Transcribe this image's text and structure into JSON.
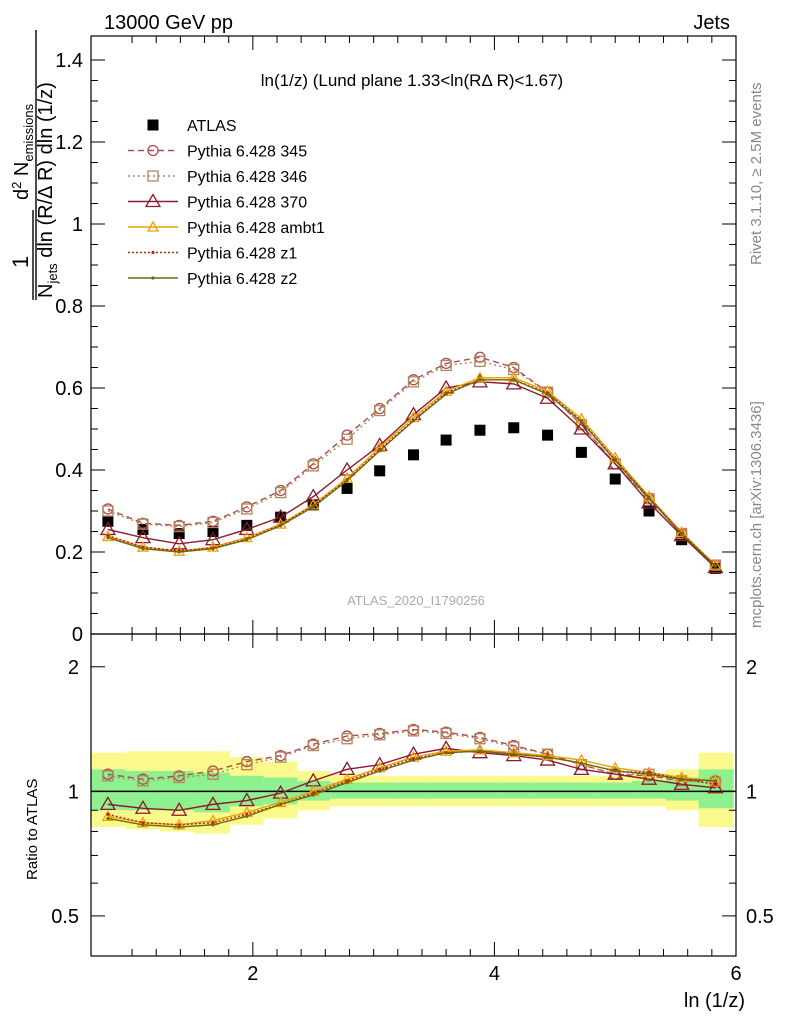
{
  "header": {
    "left": "13000 GeV pp",
    "right": "Jets"
  },
  "side_labels": {
    "rivet": "Rivet 3.1.10, ≥ 2.5M events",
    "mcplots": "mcplots.cern.ch [arXiv:1306.3436]"
  },
  "watermark": "ATLAS_2020_I1790256",
  "plot_title": "ln(1/z) (Lund plane 1.33<ln(RΔ R)<1.67)",
  "colors": {
    "atlas": "#000000",
    "p345": "#b14a4a",
    "p346": "#b0855a",
    "p370": "#8b1a2b",
    "ambt1": "#f0a000",
    "z1": "#c81a1a",
    "z2": "#6b6b10",
    "band_inner": "#8ef08e",
    "band_outer": "#fafa8c"
  },
  "chart_data": [
    {
      "type": "line",
      "title": "ln(1/z) (Lund plane 1.33<ln(RΔ R)<1.67)",
      "xlabel": "ln (1/z)",
      "ylabel": "1/N_jets d²N_emissions / dln(R/Δ R) dln(1/z)",
      "xlim": [
        0.66,
        6.0
      ],
      "ylim": [
        0,
        1.4
      ],
      "yticks": [
        0,
        0.2,
        0.4,
        0.6,
        0.8,
        1,
        1.2,
        1.4
      ],
      "ytick_labels": [
        "0",
        "0.2",
        "0.4",
        "0.6",
        "0.8",
        "1",
        "1.2",
        "1.4"
      ],
      "x": [
        0.8,
        1.09,
        1.39,
        1.67,
        1.95,
        2.23,
        2.5,
        2.78,
        3.05,
        3.33,
        3.6,
        3.88,
        4.16,
        4.44,
        4.72,
        5.0,
        5.28,
        5.55,
        5.83
      ],
      "series": [
        {
          "name": "ATLAS",
          "key": "atlas",
          "marker": "square",
          "values": [
            0.275,
            0.255,
            0.245,
            0.25,
            0.265,
            0.285,
            0.315,
            0.355,
            0.398,
            0.437,
            0.473,
            0.497,
            0.503,
            0.485,
            0.443,
            0.378,
            0.3,
            0.23,
            0.16
          ]
        },
        {
          "name": "Pythia 6.428 345",
          "key": "p345",
          "marker": "circle",
          "dash": "6,4",
          "values": [
            0.305,
            0.27,
            0.265,
            0.275,
            0.31,
            0.35,
            0.415,
            0.485,
            0.55,
            0.62,
            0.66,
            0.675,
            0.65,
            0.59,
            0.51,
            0.415,
            0.33,
            0.245,
            0.168
          ]
        },
        {
          "name": "Pythia 6.428 346",
          "key": "p346",
          "marker": "square-open",
          "dash": "2,3",
          "values": [
            0.3,
            0.268,
            0.262,
            0.272,
            0.305,
            0.345,
            0.41,
            0.475,
            0.545,
            0.615,
            0.655,
            0.665,
            0.645,
            0.59,
            0.51,
            0.415,
            0.33,
            0.245,
            0.168
          ]
        },
        {
          "name": "Pythia 6.428 370",
          "key": "p370",
          "marker": "triangle",
          "dash": "",
          "values": [
            0.255,
            0.235,
            0.22,
            0.23,
            0.255,
            0.285,
            0.335,
            0.4,
            0.46,
            0.535,
            0.6,
            0.615,
            0.61,
            0.575,
            0.5,
            0.415,
            0.32,
            0.24,
            0.162
          ]
        },
        {
          "name": "Pythia 6.428 ambt1",
          "key": "ambt1",
          "marker": "triangle-small",
          "dash": "",
          "values": [
            0.238,
            0.212,
            0.202,
            0.212,
            0.235,
            0.268,
            0.315,
            0.38,
            0.455,
            0.528,
            0.592,
            0.625,
            0.625,
            0.592,
            0.525,
            0.43,
            0.335,
            0.248,
            0.168
          ]
        },
        {
          "name": "Pythia 6.428 z1",
          "key": "z1",
          "marker": "dot",
          "dash": "2,2",
          "values": [
            0.24,
            0.212,
            0.203,
            0.21,
            0.232,
            0.266,
            0.313,
            0.376,
            0.45,
            0.522,
            0.588,
            0.62,
            0.62,
            0.588,
            0.52,
            0.425,
            0.333,
            0.246,
            0.167
          ]
        },
        {
          "name": "Pythia 6.428 z2",
          "key": "z2",
          "marker": "dot",
          "dash": "",
          "values": [
            0.235,
            0.208,
            0.2,
            0.208,
            0.23,
            0.264,
            0.31,
            0.374,
            0.447,
            0.52,
            0.585,
            0.62,
            0.62,
            0.585,
            0.518,
            0.423,
            0.331,
            0.244,
            0.166
          ]
        }
      ]
    },
    {
      "type": "line",
      "ylabel": "Ratio to ATLAS",
      "xlabel": "ln (1/z)",
      "xlim": [
        0.66,
        6.0
      ],
      "ylim": [
        0.4,
        2.4
      ],
      "scale": "log",
      "xticks": [
        2,
        4,
        6
      ],
      "xtick_labels": [
        "2",
        "4",
        "6"
      ],
      "yticks": [
        0.5,
        1,
        2
      ],
      "ytick_labels": [
        "0.5",
        "1",
        "2"
      ],
      "bin_edges": [
        0.66,
        0.95,
        1.23,
        1.51,
        1.81,
        2.09,
        2.37,
        2.64,
        2.92,
        3.19,
        3.47,
        3.74,
        4.02,
        4.3,
        4.58,
        4.86,
        5.14,
        5.42,
        5.69,
        5.98
      ],
      "band_inner": [
        [
          0.9,
          1.13
        ],
        [
          0.9,
          1.12
        ],
        [
          0.9,
          1.12
        ],
        [
          0.89,
          1.11
        ],
        [
          0.92,
          1.09
        ],
        [
          0.93,
          1.08
        ],
        [
          0.95,
          1.06
        ],
        [
          0.96,
          1.05
        ],
        [
          0.96,
          1.05
        ],
        [
          0.96,
          1.05
        ],
        [
          0.96,
          1.05
        ],
        [
          0.96,
          1.05
        ],
        [
          0.96,
          1.05
        ],
        [
          0.96,
          1.05
        ],
        [
          0.96,
          1.05
        ],
        [
          0.96,
          1.05
        ],
        [
          0.96,
          1.06
        ],
        [
          0.95,
          1.08
        ],
        [
          0.91,
          1.13
        ]
      ],
      "band_outer": [
        [
          0.82,
          1.24
        ],
        [
          0.81,
          1.25
        ],
        [
          0.8,
          1.25
        ],
        [
          0.79,
          1.25
        ],
        [
          0.83,
          1.21
        ],
        [
          0.86,
          1.18
        ],
        [
          0.9,
          1.12
        ],
        [
          0.92,
          1.1
        ],
        [
          0.92,
          1.09
        ],
        [
          0.92,
          1.09
        ],
        [
          0.92,
          1.09
        ],
        [
          0.92,
          1.09
        ],
        [
          0.92,
          1.09
        ],
        [
          0.92,
          1.09
        ],
        [
          0.92,
          1.09
        ],
        [
          0.92,
          1.09
        ],
        [
          0.92,
          1.1
        ],
        [
          0.9,
          1.13
        ],
        [
          0.82,
          1.24
        ]
      ],
      "series": [
        {
          "name": "Pythia 6.428 345",
          "key": "p345",
          "values": [
            1.1,
            1.07,
            1.09,
            1.12,
            1.18,
            1.22,
            1.3,
            1.36,
            1.38,
            1.41,
            1.39,
            1.35,
            1.29,
            1.23,
            1.16,
            1.1,
            1.09,
            1.06,
            1.06
          ]
        },
        {
          "name": "Pythia 6.428 346",
          "key": "p346",
          "values": [
            1.09,
            1.06,
            1.08,
            1.1,
            1.16,
            1.21,
            1.29,
            1.34,
            1.37,
            1.4,
            1.38,
            1.34,
            1.28,
            1.23,
            1.16,
            1.1,
            1.1,
            1.06,
            1.05
          ]
        },
        {
          "name": "Pythia 6.428 370",
          "key": "p370",
          "values": [
            0.93,
            0.91,
            0.9,
            0.93,
            0.95,
            0.99,
            1.06,
            1.13,
            1.16,
            1.23,
            1.27,
            1.24,
            1.22,
            1.19,
            1.13,
            1.1,
            1.07,
            1.04,
            1.02
          ]
        },
        {
          "name": "Pythia 6.428 ambt1",
          "key": "ambt1",
          "values": [
            0.87,
            0.84,
            0.83,
            0.85,
            0.89,
            0.94,
            1.0,
            1.07,
            1.14,
            1.21,
            1.25,
            1.26,
            1.24,
            1.22,
            1.19,
            1.14,
            1.11,
            1.08,
            1.06
          ]
        },
        {
          "name": "Pythia 6.428 z1",
          "key": "z1",
          "values": [
            0.88,
            0.84,
            0.83,
            0.84,
            0.88,
            0.93,
            0.99,
            1.06,
            1.13,
            1.2,
            1.24,
            1.25,
            1.23,
            1.21,
            1.17,
            1.12,
            1.11,
            1.07,
            1.04
          ]
        },
        {
          "name": "Pythia 6.428 z2",
          "key": "z2",
          "values": [
            0.86,
            0.83,
            0.82,
            0.83,
            0.87,
            0.93,
            0.98,
            1.05,
            1.12,
            1.19,
            1.24,
            1.25,
            1.23,
            1.21,
            1.17,
            1.12,
            1.1,
            1.07,
            1.06
          ]
        }
      ]
    }
  ]
}
